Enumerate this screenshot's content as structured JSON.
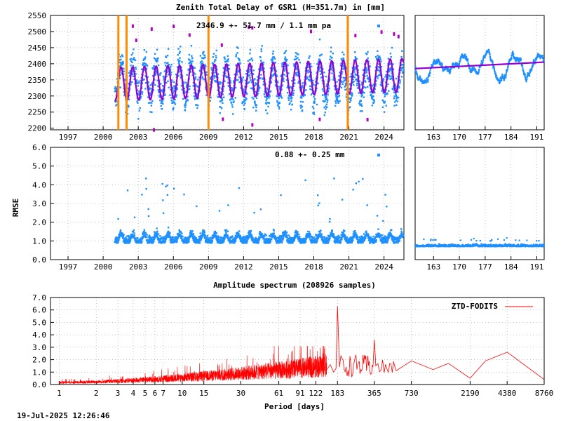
{
  "title": "Zenith Total Delay of GSR1 (H=351.7m) in [mm]",
  "footer_timestamp": "19-Jul-2025 12:26:46",
  "colors": {
    "points": "#1e90ff",
    "fit": "#9400d3",
    "breaks": "#ff8c00",
    "outliers": "#b000c0",
    "spectrum": "#ff0000",
    "grid": "#a0a0a0"
  },
  "chart_data": [
    {
      "type": "scatter",
      "name": "ztd-timeseries",
      "annotation": "2346.9 +-  51.7 mm /  1.1 mm pa",
      "xlim": [
        1995.5,
        2025.7
      ],
      "ylim": [
        2195,
        2550
      ],
      "xticks": [
        1997,
        2000,
        2003,
        2006,
        2009,
        2012,
        2015,
        2018,
        2021,
        2024
      ],
      "yticks": [
        2200,
        2250,
        2300,
        2350,
        2400,
        2450,
        2500,
        2550
      ],
      "data_start": 2001.0,
      "fit_mean": 2346.9,
      "fit_amplitude": 51.7,
      "fit_trend_per_year": 1.1,
      "breaks": [
        2001.3,
        2002.0,
        2009.0,
        2020.9
      ],
      "grid": true
    },
    {
      "type": "scatter",
      "name": "ztd-recent",
      "xlim": [
        158,
        193
      ],
      "ylim": [
        2195,
        2550
      ],
      "xticks": [
        163,
        170,
        177,
        184,
        191
      ],
      "fit_range": [
        2385,
        2405
      ],
      "grid": true
    },
    {
      "type": "scatter",
      "name": "rmse-timeseries",
      "annotation": "0.88 +-  0.25 mm",
      "ylabel": "RMSE",
      "xlim": [
        1995.5,
        2025.7
      ],
      "ylim": [
        0,
        6
      ],
      "xticks": [
        1997,
        2000,
        2003,
        2006,
        2009,
        2012,
        2015,
        2018,
        2021,
        2024
      ],
      "yticks": [
        0.0,
        1.0,
        2.0,
        3.0,
        4.0,
        5.0,
        6.0
      ],
      "data_start": 2001.0,
      "mean": 0.88,
      "std": 0.25,
      "grid": true
    },
    {
      "type": "scatter",
      "name": "rmse-recent",
      "xlim": [
        158,
        193
      ],
      "ylim": [
        0,
        6
      ],
      "xticks": [
        163,
        170,
        177,
        184,
        191
      ],
      "mean": 0.7,
      "grid": true
    },
    {
      "type": "line",
      "name": "amplitude-spectrum",
      "title": "Amplitude spectrum (208926 samples)",
      "xlabel": "Period [days]",
      "xscale": "log",
      "xlim": [
        0.85,
        8760
      ],
      "ylim": [
        0,
        7
      ],
      "yticks": [
        0.0,
        1.0,
        2.0,
        3.0,
        4.0,
        5.0,
        6.0,
        7.0
      ],
      "xticks": [
        1,
        2,
        3,
        4,
        5,
        6,
        7,
        10,
        15,
        30,
        61,
        91,
        122,
        183,
        365,
        730,
        2190,
        4380,
        8760
      ],
      "legend": "ZTD-FODITS",
      "legend_position": "top-right",
      "series": [
        {
          "name": "ZTD-FODITS",
          "x": [
            183,
            365,
            548,
            730,
            1095,
            1460,
            2190,
            2920,
            4380,
            8760
          ],
          "y": [
            6.3,
            3.6,
            1.1,
            1.9,
            1.2,
            1.7,
            0.5,
            1.9,
            2.6,
            0.4
          ]
        }
      ],
      "grid": true
    }
  ]
}
